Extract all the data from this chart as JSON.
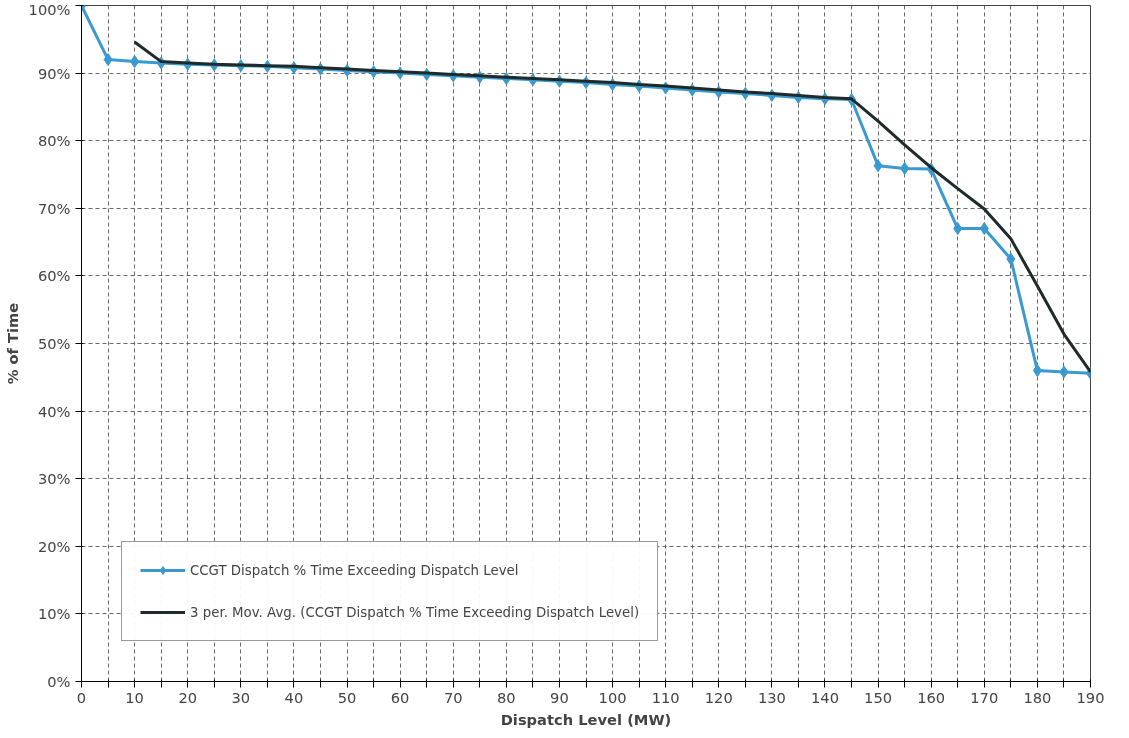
{
  "chart_data": {
    "type": "line",
    "xlabel": "Dispatch Level (MW)",
    "ylabel": "% of Time",
    "xlim": [
      0,
      190
    ],
    "ylim": [
      0,
      100
    ],
    "xticks": [
      0,
      {
        "value": 5,
        "label": null
      },
      10,
      {
        "value": 15,
        "label": null
      },
      20,
      {
        "value": 25,
        "label": null
      },
      30,
      {
        "value": 35,
        "label": null
      },
      40,
      {
        "value": 45,
        "label": null
      },
      50,
      {
        "value": 55,
        "label": null
      },
      60,
      {
        "value": 65,
        "label": null
      },
      70,
      {
        "value": 75,
        "label": null
      },
      80,
      {
        "value": 85,
        "label": null
      },
      90,
      {
        "value": 95,
        "label": null
      },
      100,
      {
        "value": 105,
        "label": null
      },
      110,
      {
        "value": 115,
        "label": null
      },
      120,
      {
        "value": 125,
        "label": null
      },
      130,
      {
        "value": 135,
        "label": null
      },
      140,
      {
        "value": 145,
        "label": null
      },
      150,
      {
        "value": 155,
        "label": null
      },
      160,
      {
        "value": 165,
        "label": null
      },
      170,
      {
        "value": 175,
        "label": null
      },
      180,
      {
        "value": 185,
        "label": null
      },
      190
    ],
    "yticks": [
      {
        "value": 0,
        "label": "0%"
      },
      {
        "value": 10,
        "label": "10%"
      },
      {
        "value": 20,
        "label": "20%"
      },
      {
        "value": 30,
        "label": "30%"
      },
      {
        "value": 40,
        "label": "40%"
      },
      {
        "value": 50,
        "label": "50%"
      },
      {
        "value": 60,
        "label": "60%"
      },
      {
        "value": 70,
        "label": "70%"
      },
      {
        "value": 80,
        "label": "80%"
      },
      {
        "value": 90,
        "label": "90%"
      },
      {
        "value": 100,
        "label": "100%"
      }
    ],
    "grid": true,
    "legend": "bottom left",
    "line_style": "solid",
    "series": [
      {
        "name": "CCGT Dispatch % Time Exceeding Dispatch Level",
        "color": "#3a9ad0",
        "marker": "diamond",
        "x": [
          0,
          5,
          10,
          15,
          20,
          25,
          30,
          35,
          40,
          45,
          50,
          55,
          60,
          65,
          70,
          75,
          80,
          85,
          90,
          95,
          100,
          105,
          110,
          115,
          120,
          125,
          130,
          135,
          140,
          145,
          150,
          155,
          160,
          165,
          170,
          175,
          180,
          185,
          190
        ],
        "values": [
          100,
          92,
          91.7,
          91.5,
          91.3,
          91.2,
          91.1,
          91,
          90.8,
          90.6,
          90.4,
          90.2,
          90,
          89.8,
          89.6,
          89.4,
          89.2,
          89,
          88.8,
          88.6,
          88.3,
          88.1,
          87.8,
          87.5,
          87.2,
          87,
          86.7,
          86.4,
          86.2,
          86.1,
          76.3,
          75.9,
          75.8,
          67,
          67,
          62.5,
          46,
          45.8,
          45.6
        ]
      },
      {
        "name": "3 per. Mov. Avg. (CCGT Dispatch % Time Exceeding Dispatch Level)",
        "color": "#1f2a2a",
        "marker": "none",
        "x": [
          10,
          15,
          20,
          25,
          30,
          35,
          40,
          45,
          50,
          55,
          60,
          65,
          70,
          75,
          80,
          85,
          90,
          95,
          100,
          105,
          110,
          115,
          120,
          125,
          130,
          135,
          140,
          145,
          150,
          155,
          160,
          165,
          170,
          175,
          180,
          185,
          190
        ],
        "values": [
          94.6,
          91.7,
          91.5,
          91.3,
          91.2,
          91.1,
          91,
          90.8,
          90.6,
          90.4,
          90.2,
          90,
          89.8,
          89.6,
          89.4,
          89.2,
          89,
          88.8,
          88.6,
          88.3,
          88.1,
          87.8,
          87.5,
          87.2,
          87,
          86.7,
          86.4,
          86.2,
          82.9,
          79.4,
          76,
          72.9,
          69.9,
          65.5,
          58.5,
          51.4,
          45.8
        ]
      }
    ]
  }
}
